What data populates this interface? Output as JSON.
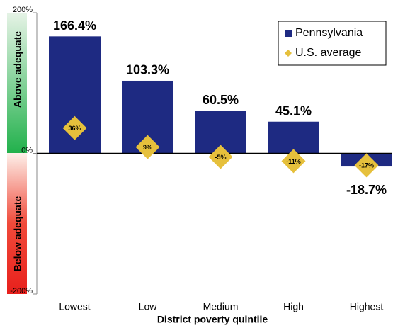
{
  "chart_data": {
    "type": "bar",
    "x_label": "District poverty quintile",
    "categories": [
      "Lowest",
      "Low",
      "Medium",
      "High",
      "Highest"
    ],
    "series": [
      {
        "name": "Pennsylvania",
        "color": "#1e2a82",
        "values": [
          166.4,
          103.3,
          60.5,
          45.1,
          -18.7
        ],
        "value_labels": [
          "166.4%",
          "103.3%",
          "60.5%",
          "45.1%",
          "-18.7%"
        ]
      },
      {
        "name": "U.S. average",
        "color": "#e6c03c",
        "marker": "diamond",
        "values": [
          36,
          9,
          -5,
          -11,
          -17
        ],
        "value_labels": [
          "36%",
          "9%",
          "-5%",
          "-11%",
          "-17%"
        ]
      }
    ],
    "ylim": [
      -200,
      200
    ],
    "yticks": [
      {
        "value": -200,
        "label": "-200%"
      },
      {
        "value": 0,
        "label": "0%"
      },
      {
        "value": 200,
        "label": "200%"
      }
    ],
    "legend": "upper right",
    "annotations": [
      "Above adequate",
      "Below adequate"
    ]
  }
}
